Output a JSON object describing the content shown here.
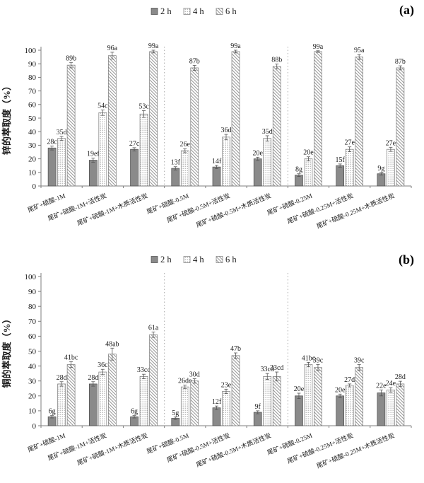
{
  "style": {
    "background": "#ffffff",
    "bar_solid_gray": "#8a8a8a",
    "bar_pattern_gray": "#9b9b9b",
    "bar_stroke": "#4a4a4a",
    "pattern_bar_stroke": "#7a7a7a",
    "axis_color": "#7f7f7f",
    "text_color": "#1a1a1a",
    "divider_color": "#aaaaaa",
    "error_bar_color": "#555555"
  },
  "chart_data": [
    {
      "type": "bar",
      "panel_label": "(a)",
      "title": "",
      "xlabel": "",
      "ylabel": "锌的萃取度（%）",
      "ylim": [
        0,
        100
      ],
      "ytick_step": 10,
      "grid": false,
      "legend_position": "top-center",
      "legend": [
        "2 h",
        "4 h",
        "6 h"
      ],
      "divider_before_category": [
        3,
        6
      ],
      "categories": [
        "尾矿+硫酸-1M",
        "尾矿+硫酸-1M+活性炭",
        "尾矿+硫酸-1M+木质活性炭",
        "尾矿+硫酸-0.5M",
        "尾矿+硫酸-0.5M+活性炭",
        "尾矿+硫酸-0.5M+木质活性炭",
        "尾矿+硫酸-0.25M",
        "尾矿+硫酸-0.25M+活性炭",
        "尾矿+硫酸-0.25M+木质活性炭"
      ],
      "series": [
        {
          "name": "2 h",
          "values": [
            28,
            19,
            27,
            13,
            14,
            20,
            8,
            15,
            9
          ],
          "errors": [
            1.5,
            1.5,
            1.2,
            1.2,
            1.2,
            1.2,
            1,
            1.2,
            1
          ],
          "labels": [
            "28c",
            "19ef",
            "27c",
            "13f",
            "14f",
            "20e",
            "8g",
            "15f",
            "9g"
          ]
        },
        {
          "name": "4 h",
          "values": [
            35,
            54,
            53,
            26,
            36,
            35,
            20,
            27,
            27
          ],
          "errors": [
            1.5,
            2,
            2.5,
            1.5,
            2,
            2,
            1.5,
            1.8,
            1.5
          ],
          "labels": [
            "35d",
            "54c",
            "53c",
            "26e",
            "36d",
            "35d",
            "20e",
            "27e",
            "27e"
          ]
        },
        {
          "name": "6 h",
          "values": [
            89,
            96,
            99,
            87,
            99,
            88,
            99,
            95,
            87
          ],
          "errors": [
            2,
            2.5,
            1,
            1.8,
            1,
            1.8,
            0.6,
            1.8,
            1.5
          ],
          "labels": [
            "89b",
            "96a",
            "99a",
            "87b",
            "99a",
            "88b",
            "99a",
            "95a",
            "87b"
          ]
        }
      ]
    },
    {
      "type": "bar",
      "panel_label": "(b)",
      "title": "",
      "xlabel": "",
      "ylabel": "铜的萃取度（%）",
      "ylim": [
        0,
        100
      ],
      "ytick_step": 10,
      "grid": false,
      "legend_position": "top-center",
      "legend": [
        "2 h",
        "4 h",
        "6 h"
      ],
      "divider_before_category": [
        3,
        6
      ],
      "categories": [
        "尾矿+硫酸-1M",
        "尾矿+硫酸-1M+活性炭",
        "尾矿+硫酸-1M+木质活性炭",
        "尾矿+硫酸-0.5M",
        "尾矿+硫酸-0.5M+活性炭",
        "尾矿+硫酸-0.5M+木质活性炭",
        "尾矿+硫酸-0.25M",
        "尾矿+硫酸-0.25M+活性炭",
        "尾矿+硫酸-0.25M+木质活性炭"
      ],
      "series": [
        {
          "name": "2 h",
          "values": [
            6,
            28,
            6,
            5,
            12,
            9,
            20,
            20,
            22
          ],
          "errors": [
            0.8,
            1.5,
            0.8,
            0.8,
            1.2,
            1,
            1.8,
            1.2,
            2
          ],
          "labels": [
            "6g",
            "28d",
            "6g",
            "5g",
            "12f",
            "9f",
            "20e",
            "20e",
            "22e"
          ]
        },
        {
          "name": "4 h",
          "values": [
            28,
            36,
            33,
            26,
            23,
            33,
            41,
            27,
            24
          ],
          "errors": [
            1.5,
            1.8,
            1.5,
            1.2,
            1.5,
            2,
            1.5,
            1,
            1.5
          ],
          "labels": [
            "28d",
            "36c",
            "33cd",
            "26de",
            "23e",
            "33cd",
            "41bc",
            "27d",
            "24e"
          ]
        },
        {
          "name": "6 h",
          "values": [
            41,
            48,
            61,
            30,
            47,
            33,
            39,
            39,
            28
          ],
          "errors": [
            2,
            4,
            1.8,
            1.5,
            1.8,
            3,
            2,
            2,
            1.8
          ],
          "labels": [
            "41bc",
            "48ab",
            "61a",
            "30d",
            "47b",
            "33cd",
            "39c",
            "39c",
            "28d"
          ]
        }
      ]
    }
  ]
}
